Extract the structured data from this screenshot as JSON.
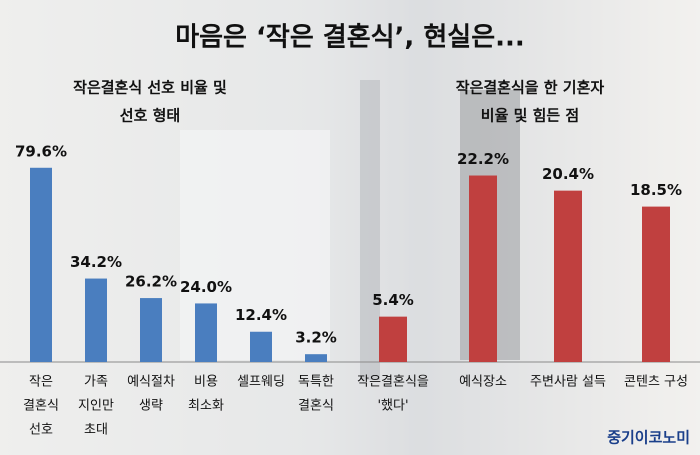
{
  "title": "마음은 ‘작은 결혼식’, 현실은...",
  "source": "중기이코노미",
  "chart_data": [
    {
      "type": "bar",
      "subtitle": [
        "작은결혼식 선호 비율 및",
        "선호 형태"
      ],
      "color": "#4a7ebf",
      "categories": [
        [
          "작은",
          "결혼식",
          "선호"
        ],
        [
          "가족",
          "지인만",
          "초대"
        ],
        [
          "예식절차",
          "생략"
        ],
        [
          "비용",
          "최소화"
        ],
        [
          "셀프웨딩"
        ],
        [
          "독특한",
          "결혼식"
        ]
      ],
      "values": [
        79.6,
        34.2,
        26.2,
        24.0,
        12.4,
        3.2
      ],
      "value_labels": [
        "79.6%",
        "34.2%",
        "26.2%",
        "24.0%",
        "12.4%",
        "3.2%"
      ]
    },
    {
      "type": "bar",
      "subtitle": [
        "작은결혼식을 한 기혼자",
        "비율 및 힘든 점"
      ],
      "color": "#c0403f",
      "categories": [
        [
          "작은결혼식을",
          "'했다'"
        ],
        [
          "예식장소"
        ],
        [
          "주변사람 설득"
        ],
        [
          "콘텐츠 구성"
        ]
      ],
      "values": [
        5.4,
        22.2,
        20.4,
        18.5
      ],
      "value_labels": [
        "5.4%",
        "22.2%",
        "20.4%",
        "18.5%"
      ]
    }
  ]
}
